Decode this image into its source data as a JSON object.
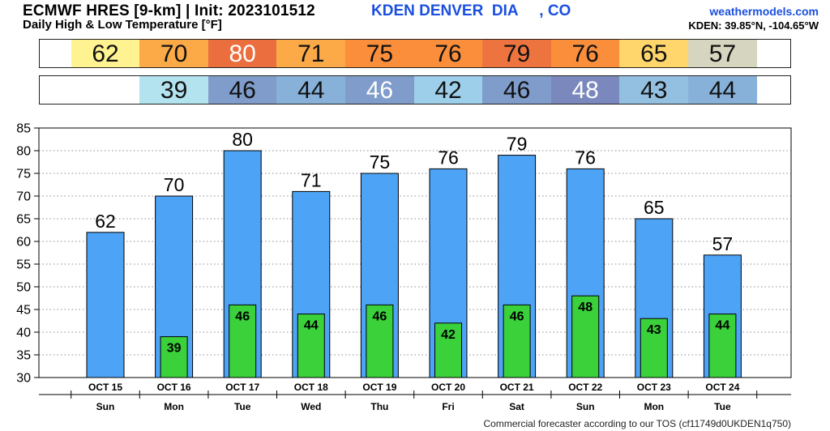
{
  "header": {
    "title": "ECMWF HRES [9-km] | Init: 2023101512",
    "station": "KDEN DENVER  DIA     , CO",
    "subtitle": "Daily High & Low Temperature [°F]",
    "brand": "weathermodels.com",
    "coords": "KDEN: 39.85°N, -104.65°W"
  },
  "footer": "Commercial forecaster according to our TOS (cf11749d0UKDEN1q750)",
  "colors": {
    "high_bar": "#4da3f5",
    "low_bar": "#3ad13a",
    "grid": "#8c8c8c"
  },
  "strips": {
    "high": [
      {
        "value": "62",
        "color": "#fff291",
        "light_text": false
      },
      {
        "value": "70",
        "color": "#fcaa48",
        "light_text": false
      },
      {
        "value": "80",
        "color": "#ea6e3e",
        "light_text": true
      },
      {
        "value": "71",
        "color": "#fcaa48",
        "light_text": false
      },
      {
        "value": "75",
        "color": "#fb8e3b",
        "light_text": false
      },
      {
        "value": "76",
        "color": "#fb8e3b",
        "light_text": false
      },
      {
        "value": "79",
        "color": "#ee743f",
        "light_text": false
      },
      {
        "value": "76",
        "color": "#fb8e3b",
        "light_text": false
      },
      {
        "value": "65",
        "color": "#fed66c",
        "light_text": false
      },
      {
        "value": "57",
        "color": "#d6d5c0",
        "light_text": false
      }
    ],
    "low": [
      {
        "value": "",
        "color": "#ffffff",
        "light_text": false
      },
      {
        "value": "39",
        "color": "#b3e3ef",
        "light_text": false
      },
      {
        "value": "46",
        "color": "#7f9ccb",
        "light_text": false
      },
      {
        "value": "44",
        "color": "#88b1d9",
        "light_text": false
      },
      {
        "value": "46",
        "color": "#7f9ccb",
        "light_text": true
      },
      {
        "value": "42",
        "color": "#9ecfea",
        "light_text": false
      },
      {
        "value": "46",
        "color": "#7f9ccb",
        "light_text": false
      },
      {
        "value": "48",
        "color": "#7a88bd",
        "light_text": true
      },
      {
        "value": "43",
        "color": "#93c0e1",
        "light_text": false
      },
      {
        "value": "44",
        "color": "#88b1d9",
        "light_text": false
      }
    ]
  },
  "chart_data": {
    "type": "bar",
    "title": "Daily High & Low Temperature [°F]",
    "categories": [
      "OCT 15",
      "OCT 16",
      "OCT 17",
      "OCT 18",
      "OCT 19",
      "OCT 20",
      "OCT 21",
      "OCT 22",
      "OCT 23",
      "OCT 24"
    ],
    "days": [
      "Sun",
      "Mon",
      "Tue",
      "Wed",
      "Thu",
      "Fri",
      "Sat",
      "Sun",
      "Mon",
      "Tue"
    ],
    "series": [
      {
        "name": "High",
        "values": [
          62,
          70,
          80,
          71,
          75,
          76,
          79,
          76,
          65,
          57
        ]
      },
      {
        "name": "Low",
        "values": [
          null,
          39,
          46,
          44,
          46,
          42,
          46,
          48,
          43,
          44
        ]
      }
    ],
    "ylim": [
      30,
      85
    ],
    "yticks": [
      30,
      35,
      40,
      45,
      50,
      55,
      60,
      65,
      70,
      75,
      80,
      85
    ],
    "grid": true,
    "legend": "none"
  }
}
